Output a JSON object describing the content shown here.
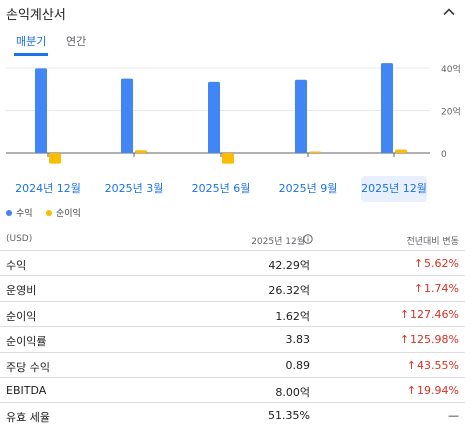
{
  "header": {
    "title": "손익계산서",
    "collapse_icon": "chevron-up-icon"
  },
  "tabs": [
    {
      "label": "매분기",
      "active": true
    },
    {
      "label": "연간",
      "active": false
    }
  ],
  "chart": {
    "y_ticks": [
      "40억",
      "20억",
      "0"
    ],
    "periods": [
      "2024년 12월",
      "2025년 3월",
      "2025년 6월",
      "2025년 9월",
      "2025년 12월"
    ],
    "selected_period": "2025년 12월",
    "colors": {
      "revenue": "#4285f4",
      "net_income": "#fbbc04",
      "accent": "#1a73e8",
      "selected_bg": "#e8f0fe",
      "negative": "#d93025"
    },
    "legend": [
      {
        "label": "수익",
        "color": "#4285f4"
      },
      {
        "label": "순이익",
        "color": "#fbbc04"
      }
    ]
  },
  "chart_data": {
    "type": "bar",
    "categories": [
      "2024년 12월",
      "2025년 3월",
      "2025년 6월",
      "2025년 9월",
      "2025년 12월"
    ],
    "series": [
      {
        "name": "수익",
        "values": [
          39.8,
          35.0,
          33.5,
          34.5,
          42.29
        ]
      },
      {
        "name": "순이익",
        "values": [
          -5.0,
          1.3,
          -5.0,
          0.7,
          1.62
        ]
      }
    ],
    "ylim": [
      -6,
      44
    ],
    "y_ticks": [
      0,
      20,
      40
    ],
    "ylabel": "",
    "xlabel": "",
    "grid": true,
    "legend_position": "bottom-left"
  },
  "table": {
    "unit": "(USD)",
    "col_value": "2025년 12월",
    "col_change": "전년대비 변동",
    "info_icon": "info-icon",
    "rows": [
      {
        "label": "수익",
        "value": "42.29억",
        "change": "5.62%",
        "direction": "up"
      },
      {
        "label": "운영비",
        "value": "26.32억",
        "change": "1.74%",
        "direction": "up"
      },
      {
        "label": "순이익",
        "value": "1.62억",
        "change": "127.46%",
        "direction": "up"
      },
      {
        "label": "순이익률",
        "value": "3.83",
        "change": "125.98%",
        "direction": "up"
      },
      {
        "label": "주당 수익",
        "value": "0.89",
        "change": "43.55%",
        "direction": "up"
      },
      {
        "label": "EBITDA",
        "value": "8.00억",
        "change": "19.94%",
        "direction": "up"
      },
      {
        "label": "유효 세율",
        "value": "51.35%",
        "change": "—",
        "direction": "none"
      }
    ]
  }
}
